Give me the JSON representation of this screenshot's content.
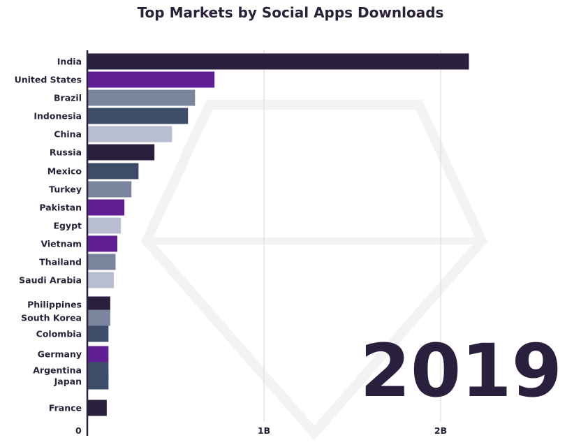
{
  "chart_data": {
    "type": "bar",
    "orientation": "horizontal",
    "title": "Top Markets by Social Apps Downloads",
    "year_label": "2019",
    "unit": "downloads (billions)",
    "xlim": [
      0,
      2.2
    ],
    "x_ticks": [
      {
        "value": 0,
        "label": "0"
      },
      {
        "value": 1,
        "label": "1B"
      },
      {
        "value": 2,
        "label": "2B"
      }
    ],
    "grid": true,
    "categories": [
      "India",
      "United States",
      "Brazil",
      "Indonesia",
      "China",
      "Russia",
      "Mexico",
      "Turkey",
      "Pakistan",
      "Egypt",
      "Vietnam",
      "Thailand",
      "Saudi Arabia",
      "Philippines",
      "South Korea",
      "Colombia",
      "Germany",
      "Argentina",
      "Japan",
      "France"
    ],
    "values": [
      2.16,
      0.72,
      0.61,
      0.57,
      0.48,
      0.38,
      0.29,
      0.25,
      0.21,
      0.19,
      0.17,
      0.16,
      0.15,
      0.13,
      0.13,
      0.12,
      0.12,
      0.12,
      0.12,
      0.11
    ],
    "colors": [
      "#2b1f3e",
      "#5f1e94",
      "#7a849c",
      "#3d4c69",
      "#b8bdd0",
      "#2b1f3e",
      "#3d4c69",
      "#7a849c",
      "#5f1e94",
      "#b8bdd0",
      "#5f1e94",
      "#7a849c",
      "#b8bdd0",
      "#2b1f3e",
      "#7a849c",
      "#3d4c69",
      "#5f1e94",
      "#3d4c69",
      "#3d4c69",
      "#2b1f3e"
    ]
  }
}
